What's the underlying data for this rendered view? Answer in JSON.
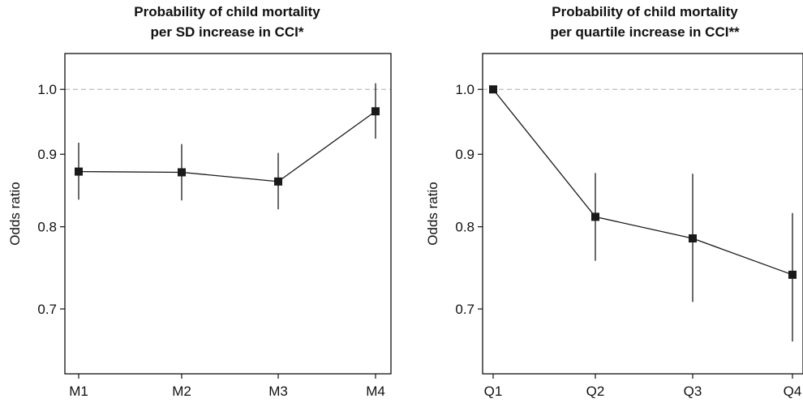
{
  "chart_data": [
    {
      "type": "line",
      "title": [
        "Probability of child mortality",
        "per SD increase in CCI*"
      ],
      "xlabel": "",
      "ylabel": "Odds ratio",
      "scale": "log",
      "ylim": [
        0.63,
        1.06
      ],
      "yticks": [
        0.7,
        0.8,
        0.9,
        1.0
      ],
      "ytick_labels": [
        "0.7",
        "0.8",
        "0.9",
        "1.0"
      ],
      "reference_line": 1.0,
      "categories": [
        "M1",
        "M2",
        "M3",
        "M4"
      ],
      "values": [
        0.875,
        0.874,
        0.861,
        0.965
      ],
      "ci_low": [
        0.836,
        0.835,
        0.823,
        0.923
      ],
      "ci_high": [
        0.917,
        0.915,
        0.902,
        1.01
      ],
      "grid": false,
      "colors": {
        "marker": "#1a1a1a",
        "reference": "#bfbfbf"
      }
    },
    {
      "type": "line",
      "title": [
        "Probability of child mortality",
        "per quartile increase in CCI**"
      ],
      "xlabel": "",
      "ylabel": "Odds ratio",
      "scale": "log",
      "ylim": [
        0.63,
        1.06
      ],
      "yticks": [
        0.7,
        0.8,
        0.9,
        1.0
      ],
      "ytick_labels": [
        "0.7",
        "0.8",
        "0.9",
        "1.0"
      ],
      "reference_line": 1.0,
      "categories": [
        "Q1",
        "Q2",
        "Q3",
        "Q4"
      ],
      "values": [
        1.0,
        0.813,
        0.785,
        0.74
      ],
      "ci_low": [
        null,
        0.757,
        0.708,
        0.664
      ],
      "ci_high": [
        null,
        0.873,
        0.872,
        0.818
      ],
      "grid": false,
      "colors": {
        "marker": "#1a1a1a",
        "reference": "#bfbfbf"
      }
    }
  ]
}
